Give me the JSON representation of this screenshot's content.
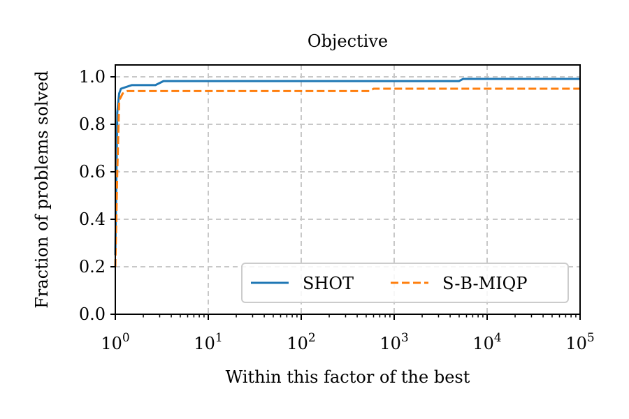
{
  "chart_data": {
    "type": "line",
    "title": "Objective",
    "xlabel": "Within this factor of the best",
    "ylabel": "Fraction of problems solved",
    "xscale": "log",
    "xlim": [
      1,
      100000
    ],
    "ylim": [
      0.0,
      1.05
    ],
    "x_ticks": [
      {
        "value": 1,
        "base": "10",
        "exp": "0"
      },
      {
        "value": 10,
        "base": "10",
        "exp": "1"
      },
      {
        "value": 100,
        "base": "10",
        "exp": "2"
      },
      {
        "value": 1000,
        "base": "10",
        "exp": "3"
      },
      {
        "value": 10000,
        "base": "10",
        "exp": "4"
      },
      {
        "value": 100000,
        "base": "10",
        "exp": "5"
      }
    ],
    "y_ticks": [
      {
        "value": 0.0,
        "label": "0.0"
      },
      {
        "value": 0.2,
        "label": "0.2"
      },
      {
        "value": 0.4,
        "label": "0.4"
      },
      {
        "value": 0.6,
        "label": "0.6"
      },
      {
        "value": 0.8,
        "label": "0.8"
      },
      {
        "value": 1.0,
        "label": "1.0"
      }
    ],
    "grid": true,
    "legend_position": "lower-right",
    "series": [
      {
        "name": "SHOT",
        "color": "#1f77b4",
        "dash": "solid",
        "points": [
          [
            1,
            0.25
          ],
          [
            1.05,
            0.85
          ],
          [
            1.1,
            0.93
          ],
          [
            1.15,
            0.95
          ],
          [
            1.5,
            0.965
          ],
          [
            2.7,
            0.965
          ],
          [
            3.3,
            0.982
          ],
          [
            5000,
            0.982
          ],
          [
            5500,
            0.991
          ],
          [
            100000,
            0.991
          ]
        ]
      },
      {
        "name": "S-B-MIQP",
        "color": "#ff7f0e",
        "dash": "dashed",
        "points": [
          [
            1,
            0.2
          ],
          [
            1.05,
            0.6
          ],
          [
            1.1,
            0.9
          ],
          [
            1.2,
            0.93
          ],
          [
            1.35,
            0.94
          ],
          [
            550,
            0.94
          ],
          [
            600,
            0.95
          ],
          [
            100000,
            0.95
          ]
        ]
      }
    ]
  }
}
